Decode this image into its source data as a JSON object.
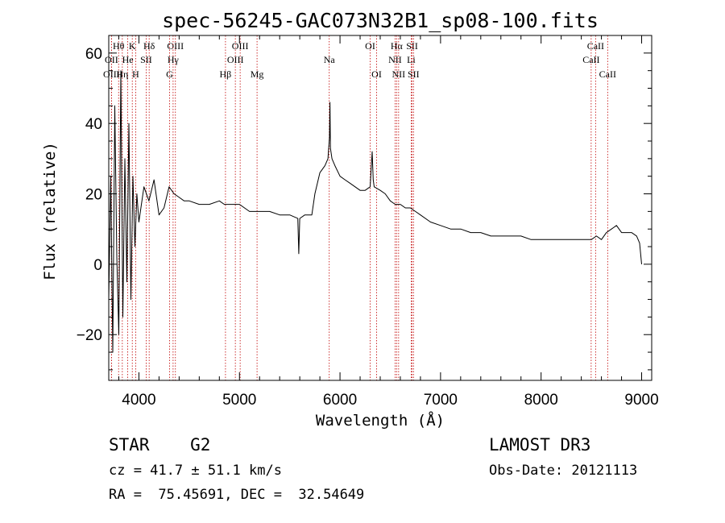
{
  "chart_data": {
    "type": "line",
    "title": "spec-56245-GAC073N32B1_sp08-100.fits",
    "xlabel": "Wavelength (Å)",
    "ylabel": "Flux (relative)",
    "xlim": [
      3700,
      9100
    ],
    "ylim": [
      -33,
      65
    ],
    "xticks": [
      4000,
      5000,
      6000,
      7000,
      8000,
      9000
    ],
    "yticks": [
      -20,
      0,
      20,
      40,
      60
    ],
    "grid": false,
    "series": [
      {
        "name": "flux",
        "x": [
          3700,
          3720,
          3740,
          3760,
          3780,
          3800,
          3820,
          3840,
          3860,
          3880,
          3900,
          3920,
          3940,
          3960,
          3980,
          4000,
          4050,
          4100,
          4150,
          4200,
          4250,
          4300,
          4350,
          4400,
          4450,
          4500,
          4600,
          4700,
          4800,
          4850,
          4900,
          5000,
          5100,
          5200,
          5300,
          5400,
          5500,
          5580,
          5590,
          5600,
          5650,
          5720,
          5750,
          5800,
          5850,
          5880,
          5895,
          5900,
          5905,
          5920,
          5950,
          6000,
          6050,
          6100,
          6150,
          6200,
          6250,
          6300,
          6320,
          6330,
          6340,
          6400,
          6450,
          6500,
          6550,
          6600,
          6650,
          6700,
          6750,
          6800,
          6900,
          7000,
          7100,
          7200,
          7300,
          7400,
          7500,
          7600,
          7700,
          7800,
          7900,
          8000,
          8100,
          8200,
          8300,
          8400,
          8500,
          8550,
          8600,
          8650,
          8700,
          8750,
          8800,
          8850,
          8900,
          8950,
          8980,
          9000
        ],
        "y": [
          -10,
          25,
          -25,
          45,
          2,
          -20,
          55,
          -15,
          30,
          -5,
          40,
          -10,
          25,
          5,
          20,
          12,
          22,
          18,
          24,
          14,
          16,
          22,
          20,
          19,
          18,
          18,
          17,
          17,
          18,
          17,
          17,
          17,
          15,
          15,
          15,
          14,
          14,
          13,
          3,
          13,
          14,
          14,
          20,
          26,
          28,
          30,
          36,
          46,
          33,
          30,
          28,
          25,
          24,
          23,
          22,
          21,
          21,
          22,
          32,
          24,
          22,
          21,
          20,
          18,
          17,
          17,
          16,
          16,
          15,
          14,
          12,
          11,
          10,
          10,
          9,
          9,
          8,
          8,
          8,
          8,
          7,
          7,
          7,
          7,
          7,
          7,
          7,
          8,
          7,
          9,
          10,
          11,
          9,
          9,
          9,
          8,
          6,
          0
        ]
      }
    ],
    "lines": [
      {
        "name": "Hθ",
        "wl": 3798,
        "row": 0
      },
      {
        "name": "K",
        "wl": 3934,
        "row": 0
      },
      {
        "name": "Hδ",
        "wl": 4102,
        "row": 0
      },
      {
        "name": "OIII",
        "wl": 4363,
        "row": 0
      },
      {
        "name": "OIII",
        "wl": 5007,
        "row": 0
      },
      {
        "name": "OI",
        "wl": 6300,
        "row": 0
      },
      {
        "name": "Hα",
        "wl": 6563,
        "row": 0
      },
      {
        "name": "SII",
        "wl": 6717,
        "row": 0
      },
      {
        "name": "CaII",
        "wl": 8542,
        "row": 0
      },
      {
        "name": "OII",
        "wl": 3727,
        "row": 1
      },
      {
        "name": "He",
        "wl": 3889,
        "row": 1
      },
      {
        "name": "SII",
        "wl": 4072,
        "row": 1
      },
      {
        "name": "Hγ",
        "wl": 4340,
        "row": 1
      },
      {
        "name": "OIII",
        "wl": 4959,
        "row": 1
      },
      {
        "name": "Na",
        "wl": 5893,
        "row": 1
      },
      {
        "name": "NII",
        "wl": 6548,
        "row": 1
      },
      {
        "name": "Li",
        "wl": 6708,
        "row": 1
      },
      {
        "name": "CaII",
        "wl": 8498,
        "row": 1
      },
      {
        "name": "OIII",
        "wl": 3727,
        "row": 2
      },
      {
        "name": "Hη",
        "wl": 3835,
        "row": 2
      },
      {
        "name": "H",
        "wl": 3968,
        "row": 2
      },
      {
        "name": "G",
        "wl": 4305,
        "row": 2
      },
      {
        "name": "Hβ",
        "wl": 4861,
        "row": 2
      },
      {
        "name": "Mg",
        "wl": 5175,
        "row": 2
      },
      {
        "name": "OI",
        "wl": 6364,
        "row": 2
      },
      {
        "name": "NII",
        "wl": 6583,
        "row": 2
      },
      {
        "name": "SII",
        "wl": 6731,
        "row": 2
      },
      {
        "name": "CaII",
        "wl": 8662,
        "row": 2
      }
    ]
  },
  "footer": {
    "object": "STAR    G2",
    "survey": "LAMOST DR3",
    "cz": "cz = 41.7 ± 51.1 km/s",
    "obs_date": "Obs-Date: 20121113",
    "radec": "RA =  75.45691, DEC =  32.54649"
  },
  "colors": {
    "line_marker": "#c00000",
    "spectrum": "#000000"
  }
}
